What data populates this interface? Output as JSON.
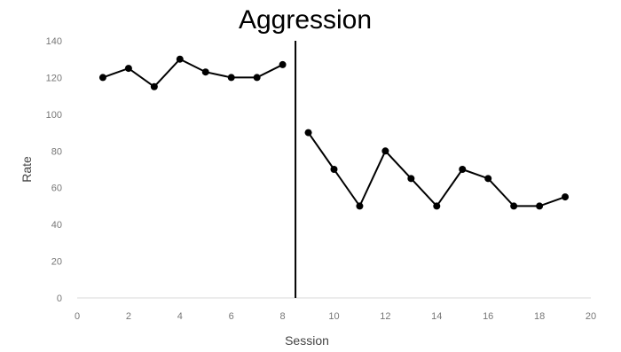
{
  "chart_data": {
    "type": "line",
    "title": "Aggression",
    "xlabel": "Session",
    "ylabel": "Rate",
    "xlim": [
      0,
      20
    ],
    "ylim": [
      0,
      140
    ],
    "xticks": [
      "0",
      "2",
      "4",
      "6",
      "8",
      "10",
      "12",
      "14",
      "16",
      "18",
      "20"
    ],
    "yticks": [
      "0",
      "20",
      "40",
      "60",
      "80",
      "100",
      "120",
      "140"
    ],
    "grid": false,
    "legend": false,
    "phase_change_x": 8.5,
    "series": [
      {
        "color": "#000000",
        "points": [
          [
            1,
            120
          ],
          [
            2,
            125
          ],
          [
            3,
            115
          ],
          [
            4,
            130
          ],
          [
            5,
            123
          ],
          [
            6,
            120
          ],
          [
            7,
            120
          ],
          [
            8,
            127
          ]
        ]
      },
      {
        "color": "#000000",
        "points": [
          [
            9,
            90
          ],
          [
            10,
            70
          ],
          [
            11,
            50
          ],
          [
            12,
            80
          ],
          [
            13,
            65
          ],
          [
            14,
            50
          ],
          [
            15,
            70
          ],
          [
            16,
            65
          ],
          [
            17,
            50
          ],
          [
            18,
            50
          ],
          [
            19,
            55
          ]
        ]
      }
    ]
  }
}
